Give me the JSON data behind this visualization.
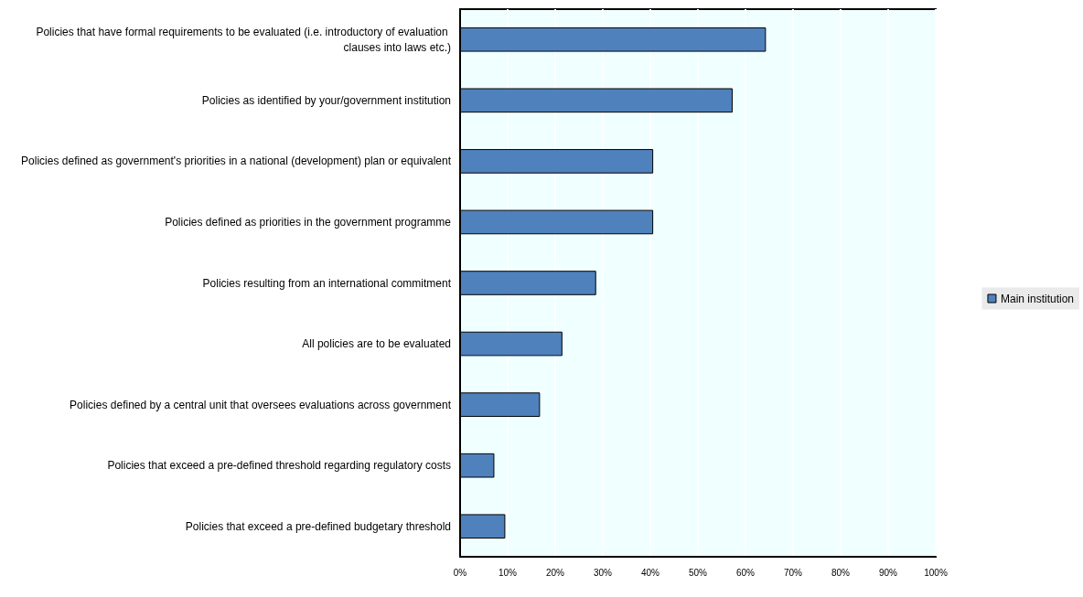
{
  "chart_data": {
    "type": "bar",
    "orientation": "horizontal",
    "categories": [
      "Policies that have formal requirements to be evaluated (i.e. introductory of evaluation clauses into laws etc.)",
      "Policies as identified by your/government institution",
      "Policies defined as government's priorities in a national (development) plan or equivalent",
      "Policies defined as priorities in the government programme",
      "Policies resulting from an international commitment",
      "All policies are to be evaluated",
      "Policies defined by a central unit that oversees evaluations across government",
      "Policies that exceed a pre-defined threshold regarding regulatory costs",
      "Policies that exceed a pre-defined budgetary threshold"
    ],
    "series": [
      {
        "name": "Main institution",
        "color": "#4f81bd",
        "values": [
          64.3,
          57.3,
          40.6,
          40.6,
          28.6,
          21.5,
          16.8,
          7.2,
          9.5
        ]
      }
    ],
    "xlim": [
      0,
      100
    ],
    "xticks": [
      {
        "value": 0,
        "label": "0%"
      },
      {
        "value": 10,
        "label": "10%"
      },
      {
        "value": 20,
        "label": "20%"
      },
      {
        "value": 30,
        "label": "30%"
      },
      {
        "value": 40,
        "label": "40%"
      },
      {
        "value": 50,
        "label": "50%"
      },
      {
        "value": 60,
        "label": "60%"
      },
      {
        "value": 70,
        "label": "70%"
      },
      {
        "value": 80,
        "label": "80%"
      },
      {
        "value": 90,
        "label": "90%"
      },
      {
        "value": 100,
        "label": "100%"
      }
    ],
    "grid": "x",
    "legend": "right"
  }
}
